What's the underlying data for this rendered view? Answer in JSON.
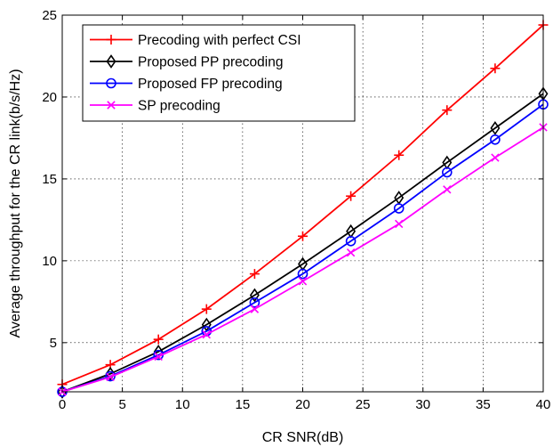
{
  "chart_data": {
    "type": "line",
    "title": "",
    "xlabel": "CR SNR(dB)",
    "ylabel": "Average throughput for the CR link(b/s/Hz)",
    "xlim": [
      0,
      40
    ],
    "ylim": [
      2,
      25
    ],
    "xticks": [
      0,
      5,
      10,
      15,
      20,
      25,
      30,
      35,
      40
    ],
    "yticks": [
      5,
      10,
      15,
      20,
      25
    ],
    "grid": true,
    "legend_position": "top-left",
    "x": [
      0,
      4,
      8,
      12,
      16,
      20,
      24,
      28,
      32,
      36,
      40
    ],
    "series": [
      {
        "name": "Precoding with perfect CSI",
        "color": "#ff0000",
        "marker": "plus",
        "values": [
          2.45,
          3.65,
          5.2,
          7.05,
          9.2,
          11.5,
          13.95,
          16.45,
          19.2,
          21.75,
          24.4
        ]
      },
      {
        "name": "Proposed PP precoding",
        "color": "#000000",
        "marker": "diamond",
        "values": [
          2.0,
          3.1,
          4.45,
          6.1,
          7.9,
          9.8,
          11.8,
          13.85,
          16.0,
          18.1,
          20.2
        ]
      },
      {
        "name": "Proposed FP precoding",
        "color": "#0000ff",
        "marker": "circle",
        "values": [
          2.0,
          2.95,
          4.25,
          5.7,
          7.45,
          9.2,
          11.2,
          13.2,
          15.4,
          17.4,
          19.55
        ]
      },
      {
        "name": "SP precoding",
        "color": "#ff00ff",
        "marker": "x",
        "values": [
          2.0,
          2.9,
          4.15,
          5.5,
          7.05,
          8.75,
          10.5,
          12.25,
          14.35,
          16.3,
          18.15
        ]
      }
    ]
  }
}
